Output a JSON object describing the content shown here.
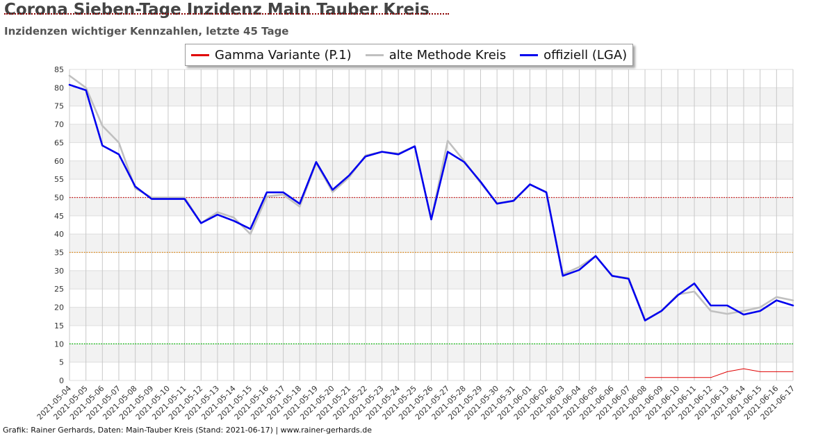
{
  "page": {
    "title": "Corona Sieben-Tage Inzidenz Main Tauber Kreis",
    "subtitle": "Inzidenzen wichtiger Kennzahlen, letzte 45 Tage",
    "footer": "Grafik: Rainer Gerhards, Daten: Main-Tauber Kreis (Stand: 2021-06-17) | www.rainer-gerhards.de"
  },
  "chart_data": {
    "type": "line",
    "title": "Corona Sieben-Tage Inzidenz Main Tauber Kreis",
    "subtitle": "Inzidenzen wichtiger Kennzahlen, letzte 45 Tage",
    "xlabel": "",
    "ylabel": "",
    "ylim": [
      0,
      85
    ],
    "y_ticks": [
      0,
      5,
      10,
      15,
      20,
      25,
      30,
      35,
      40,
      45,
      50,
      55,
      60,
      65,
      70,
      75,
      80,
      85
    ],
    "grid": true,
    "legend_position": "top-center",
    "x": [
      "2021-05-04",
      "2021-05-05",
      "2021-05-06",
      "2021-05-07",
      "2021-05-08",
      "2021-05-09",
      "2021-05-10",
      "2021-05-11",
      "2021-05-12",
      "2021-05-13",
      "2021-05-14",
      "2021-05-15",
      "2021-05-16",
      "2021-05-17",
      "2021-05-18",
      "2021-05-19",
      "2021-05-20",
      "2021-05-21",
      "2021-05-22",
      "2021-05-23",
      "2021-05-24",
      "2021-05-25",
      "2021-05-26",
      "2021-05-27",
      "2021-05-28",
      "2021-05-29",
      "2021-05-30",
      "2021-05-31",
      "2021-06-01",
      "2021-06-02",
      "2021-06-03",
      "2021-06-04",
      "2021-06-05",
      "2021-06-06",
      "2021-06-07",
      "2021-06-08",
      "2021-06-09",
      "2021-06-10",
      "2021-06-11",
      "2021-06-12",
      "2021-06-13",
      "2021-06-14",
      "2021-06-15",
      "2021-06-16",
      "2021-06-17"
    ],
    "series": [
      {
        "name": "Gamma Variante (P.1)",
        "color": "#e00000",
        "values": [
          null,
          null,
          null,
          null,
          null,
          null,
          null,
          null,
          null,
          null,
          null,
          null,
          null,
          null,
          null,
          null,
          null,
          null,
          null,
          null,
          null,
          null,
          null,
          null,
          null,
          null,
          null,
          null,
          null,
          null,
          null,
          null,
          null,
          null,
          null,
          0.8,
          0.8,
          0.8,
          0.8,
          0.8,
          2.4,
          3.2,
          2.4,
          2.4,
          2.4
        ]
      },
      {
        "name": "alte Methode Kreis",
        "color": "#c0c0c0",
        "values": [
          83.3,
          80.0,
          69.6,
          65.0,
          52.5,
          50.0,
          50.0,
          50.0,
          43.0,
          46.0,
          44.5,
          40.0,
          50.3,
          50.8,
          47.5,
          59.5,
          51.5,
          55.5,
          61.5,
          62.5,
          62.0,
          64.0,
          44.0,
          65.5,
          60.0,
          54.0,
          48.5,
          49.0,
          53.5,
          51.5,
          29.0,
          31.0,
          34.0,
          28.5,
          28.0,
          16.5,
          19.0,
          23.5,
          24.3,
          19.0,
          18.2,
          19.0,
          20.0,
          22.8,
          21.9
        ]
      },
      {
        "name": "offiziell (LGA)",
        "color": "#0000ee",
        "values": [
          80.8,
          79.3,
          64.2,
          61.8,
          53.0,
          49.6,
          49.6,
          49.6,
          43.0,
          45.3,
          43.6,
          41.4,
          51.4,
          51.4,
          48.3,
          59.7,
          52.1,
          56.0,
          61.2,
          62.5,
          61.8,
          64.0,
          44.0,
          62.5,
          59.7,
          54.3,
          48.3,
          49.1,
          53.6,
          51.4,
          28.6,
          30.2,
          34.0,
          28.6,
          27.8,
          16.4,
          19.0,
          23.3,
          26.5,
          20.5,
          20.5,
          18.0,
          19.0,
          21.9,
          20.5
        ]
      }
    ],
    "reference_lines": [
      {
        "value": 50,
        "color": "#cc0000"
      },
      {
        "value": 35,
        "color": "#e08000"
      },
      {
        "value": 10,
        "color": "#00bb00"
      }
    ]
  }
}
